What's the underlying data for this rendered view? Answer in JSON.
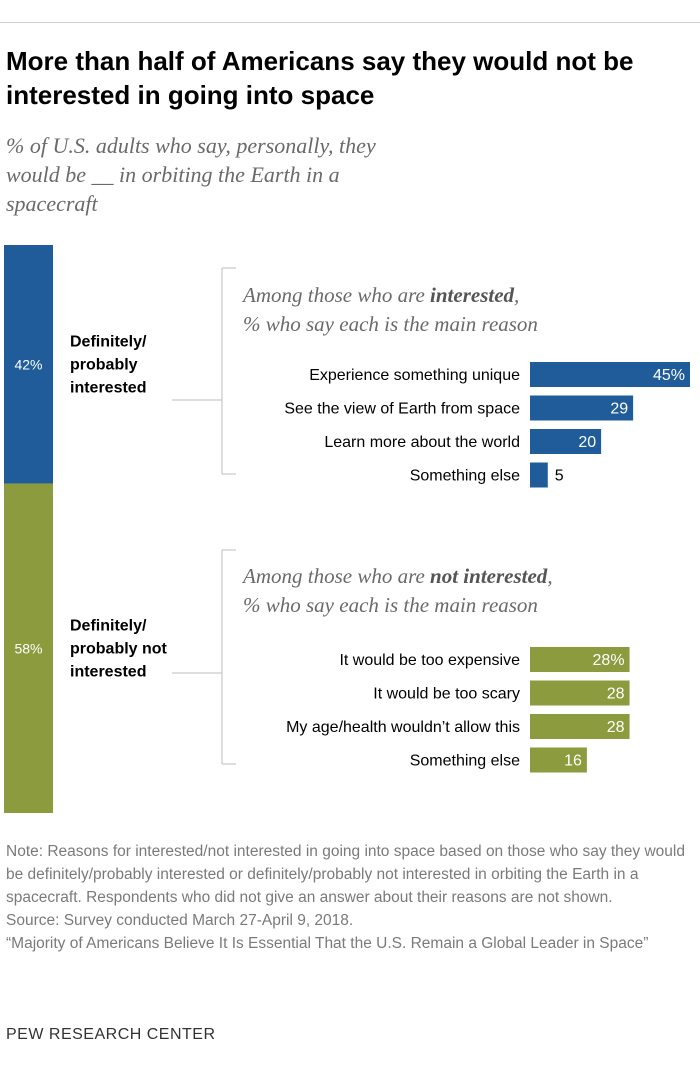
{
  "title": "More than half of Americans say they would not be interested in going into space",
  "subtitle": "% of U.S. adults who say, personally, they would be __ in orbiting the Earth in a spacecraft",
  "chart_data": [
    {
      "type": "bar",
      "title": "Overall",
      "categories": [
        "Definitely/ probably interested",
        "Definitely/ probably not interested"
      ],
      "values": [
        42,
        58
      ],
      "value_labels": [
        "42%",
        "58%"
      ],
      "label_lines": [
        [
          "Definitely/",
          "probably",
          "interested"
        ],
        [
          "Definitely/",
          "probably not",
          "interested"
        ]
      ],
      "colors": [
        "#1f5c99",
        "#8b9b3e"
      ]
    },
    {
      "type": "bar",
      "title_parts": [
        "Among those who are ",
        "interested",
        ","
      ],
      "title_line2": "% who say each is the main reason",
      "categories": [
        "Experience something unique",
        "See the view of Earth from space",
        "Learn more about the world",
        "Something else"
      ],
      "values": [
        45,
        29,
        20,
        5
      ],
      "value_labels": [
        "45%",
        "29",
        "20",
        "5"
      ],
      "color": "#1f5c99",
      "xlim": [
        0,
        45
      ]
    },
    {
      "type": "bar",
      "title_parts": [
        "Among those who are ",
        "not interested",
        ","
      ],
      "title_line2": "% who say each is the main reason",
      "categories": [
        "It would be too expensive",
        "It would be too scary",
        "My age/health wouldn’t allow this",
        "Something else"
      ],
      "values": [
        28,
        28,
        28,
        16
      ],
      "value_labels": [
        "28%",
        "28",
        "28",
        "16"
      ],
      "color": "#8b9b3e",
      "xlim": [
        0,
        45
      ]
    }
  ],
  "notes": {
    "note": "Note: Reasons for interested/not interested in going into space based on those who say they would be definitely/probably interested or definitely/probably not interested in orbiting the Earth in a spacecraft. Respondents who did not give an answer about their reasons are not shown.",
    "source": "Source: Survey conducted March 27-April 9, 2018.",
    "report": "“Majority of Americans Believe It Is Essential That the U.S. Remain a Global Leader in Space”"
  },
  "brand": "PEW RESEARCH CENTER"
}
